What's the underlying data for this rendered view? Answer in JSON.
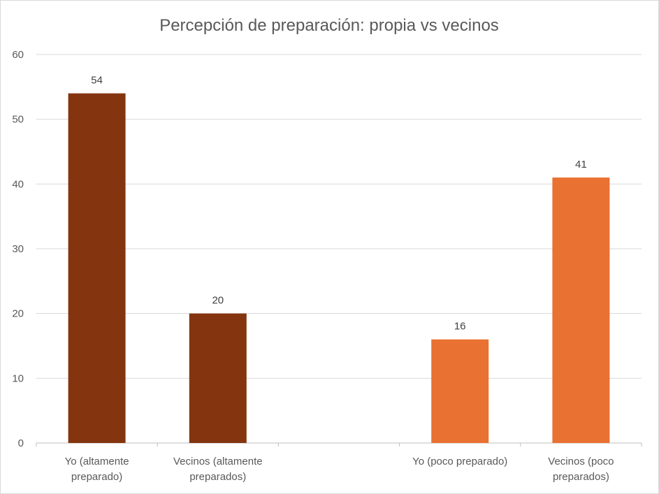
{
  "chart_data": {
    "type": "bar",
    "title": "Percepción de preparación: propia vs vecinos",
    "categories": [
      [
        "Yo (altamente",
        "preparado)"
      ],
      [
        "Vecinos (altamente",
        "preparados)"
      ],
      [],
      [
        "Yo (poco preparado)"
      ],
      [
        "Vecinos (poco",
        "preparados)"
      ]
    ],
    "values": [
      54,
      20,
      null,
      16,
      41
    ],
    "data_labels": [
      "54",
      "20",
      "",
      "16",
      "41"
    ],
    "bar_colors": [
      "#843510",
      "#843510",
      null,
      "#E97132",
      "#E97132"
    ],
    "ylim": [
      0,
      60
    ],
    "yticks": [
      0,
      10,
      20,
      30,
      40,
      50,
      60
    ],
    "grid": true,
    "legend": "none",
    "xlabel": "",
    "ylabel": ""
  }
}
